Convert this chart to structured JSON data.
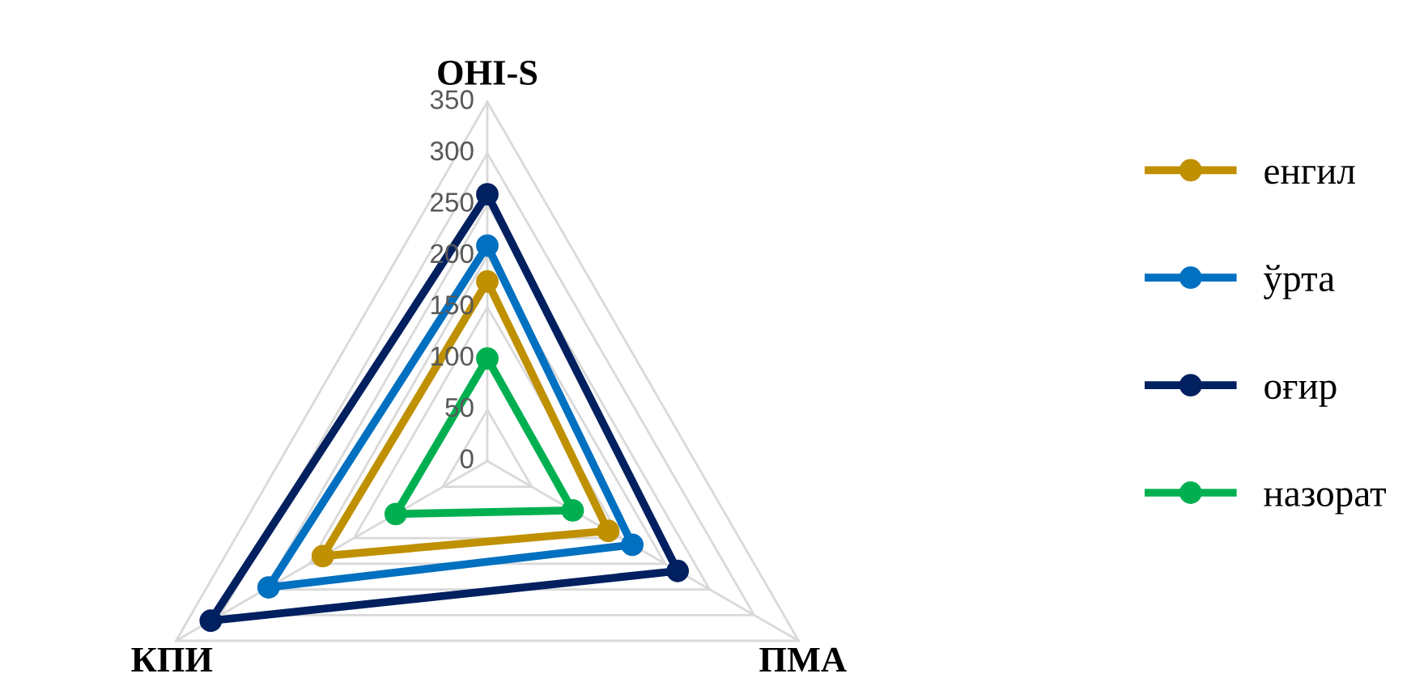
{
  "chart_data": {
    "type": "radar",
    "categories": [
      "OHI-S",
      "ПМА",
      "КПИ"
    ],
    "ylim": [
      0,
      350
    ],
    "yticks": [
      0,
      50,
      100,
      150,
      200,
      250,
      300,
      350
    ],
    "grid": true,
    "legend": "right",
    "marker": "circle",
    "series": [
      {
        "name": "енгил",
        "color": "#bf9000",
        "values": [
          175,
          136,
          185
        ]
      },
      {
        "name": "ўрта",
        "color": "#0070c0",
        "values": [
          210,
          163,
          246
        ]
      },
      {
        "name": "оғир",
        "color": "#002060",
        "values": [
          260,
          214,
          311
        ]
      },
      {
        "name": "назорат",
        "color": "#00b050",
        "values": [
          100,
          96,
          103
        ]
      }
    ]
  }
}
